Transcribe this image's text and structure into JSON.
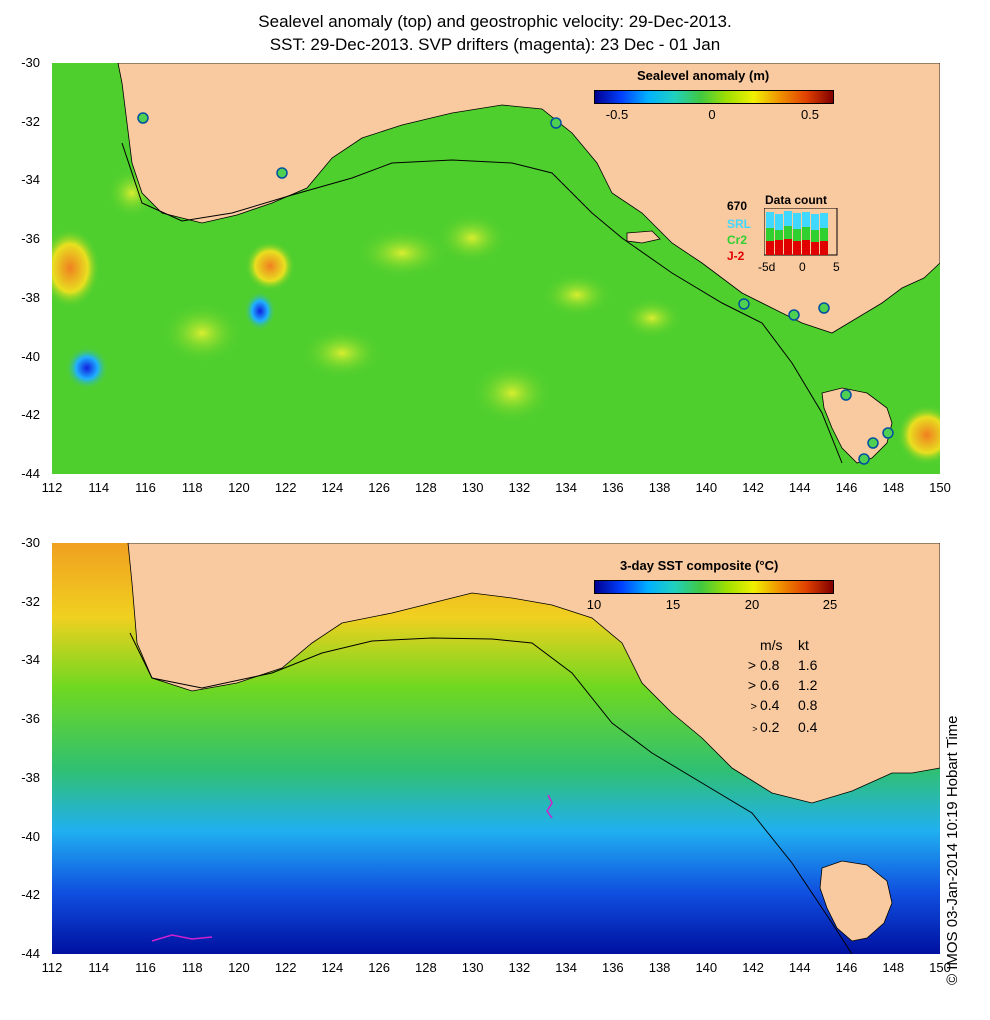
{
  "titles": {
    "line1": "Sealevel anomaly (top) and geostrophic velocity: 29-Dec-2013.",
    "line2": "SST: 29-Dec-2013. SVP drifters (magenta): 23 Dec - 01 Jan"
  },
  "axes": {
    "y_labels": [
      "-30",
      "-32",
      "-34",
      "-36",
      "-38",
      "-40",
      "-42",
      "-44"
    ],
    "x_labels": [
      "112",
      "114",
      "116",
      "118",
      "120",
      "122",
      "124",
      "126",
      "128",
      "130",
      "132",
      "134",
      "136",
      "138",
      "140",
      "142",
      "144",
      "146",
      "148",
      "150"
    ]
  },
  "colors": {
    "land": "#f9c99f",
    "sla_ocean": "#4fcf2e",
    "coast": "#000000"
  },
  "top_panel": {
    "colorbar": {
      "title": "Sealevel anomaly (m)",
      "ticks": [
        "-0.5",
        "0",
        "0.5"
      ]
    },
    "data_count": {
      "title": "Data count",
      "max": "670",
      "sats": [
        {
          "label": "SRL",
          "color": "#40d8ff"
        },
        {
          "label": "Cr2",
          "color": "#30d030"
        },
        {
          "label": "J-2",
          "color": "#e00000"
        }
      ],
      "x_ticks": [
        "-5d",
        "0",
        "5"
      ]
    }
  },
  "bottom_panel": {
    "colorbar": {
      "title": "3-day SST composite (°C)",
      "ticks": [
        "10",
        "15",
        "20",
        "25"
      ]
    },
    "velocity_scale": {
      "header_ms": "m/s",
      "header_kt": "kt",
      "rows": [
        {
          "ms": "0.8",
          "kt": "1.6"
        },
        {
          "ms": "0.6",
          "kt": "1.2"
        },
        {
          "ms": "0.4",
          "kt": "0.8"
        },
        {
          "ms": "0.2",
          "kt": "0.4"
        }
      ]
    }
  },
  "watermark": "© IMOS 03-Jan-2014 10:19 Hobart Time"
}
